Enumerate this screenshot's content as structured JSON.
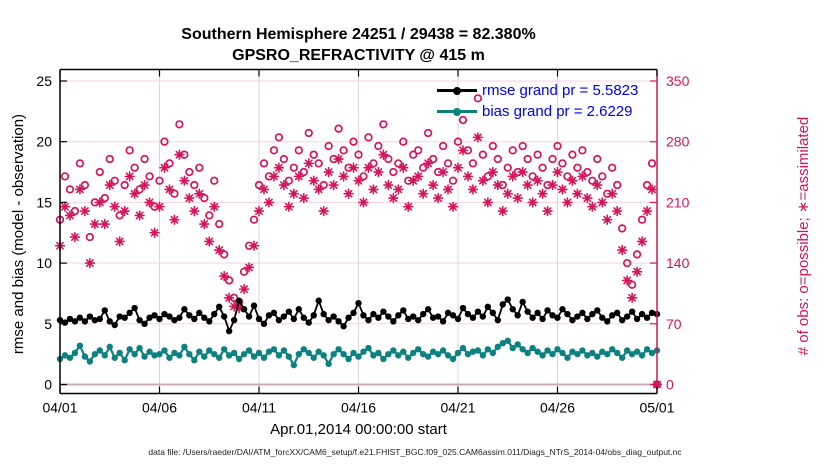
{
  "figure": {
    "title_line1": "Southern Hemisphere 24251 / 29438 = 82.380%",
    "title_line2": "GPSRO_REFRACTIVITY @ 415 m",
    "xlabel": "Apr.01,2014 00:00:00 start",
    "ylabel_left": "rmse and bias (model - observation)",
    "ylabel_right": "# of obs: o=possible; ∗=assimilated",
    "footer": "data file: /Users/raeder/DAI/ATM_forcXX/CAM6_setup/f.e21.FHIST_BGC.f09_025.CAM6assim.011/Diags_NTrS_2014-04/obs_diag_output.nc",
    "colors": {
      "crimson": "#d3165c",
      "grid_pink": "#f6d3e0",
      "zero_line": "#c9a9b7",
      "grid_gray": "#d8d8d8",
      "teal": "#0c8180",
      "legend_blue": "#0000ee",
      "black": "#000000"
    }
  },
  "legend": {
    "items": [
      {
        "label": "rmse grand pr = 5.5823",
        "series": "rmse"
      },
      {
        "label": "bias grand pr = 2.6229",
        "series": "bias"
      }
    ]
  },
  "chart_data": {
    "type": "line+scatter",
    "title": "Southern Hemisphere 24251 / 29438 = 82.380% | GPSRO_REFRACTIVITY @ 415 m",
    "x": {
      "unit": "days since Apr.01,2014 00:00:00",
      "start": 0,
      "step": 0.25,
      "end": 30
    },
    "x_ticks": {
      "days": [
        0,
        5,
        10,
        15,
        20,
        25,
        30
      ],
      "labels": [
        "04/01",
        "04/06",
        "04/11",
        "04/16",
        "04/21",
        "04/26",
        "05/01"
      ]
    },
    "left_axis": {
      "label": "rmse and bias (model - observation)",
      "ticks": [
        0,
        5,
        10,
        15,
        20,
        25
      ],
      "range": [
        -0.8,
        26.0
      ],
      "color": "#000000"
    },
    "right_axis": {
      "label": "# of obs: o=possible; ∗=assimilated",
      "ticks": [
        0,
        70,
        140,
        210,
        280,
        350
      ],
      "range": [
        -9,
        372
      ],
      "color": "#d3165c"
    },
    "grid": {
      "horizontal_pink_at_right_ticks": true,
      "vertical_gray_at_x_ticks": true
    },
    "legend_position": "top-right-inside",
    "series": [
      {
        "name": "rmse",
        "legend_label": "rmse grand pr = 5.5823",
        "axis": "left",
        "type": "line",
        "marker": "filled-circle",
        "color": "#000000",
        "values": [
          5.3,
          5.1,
          5.4,
          5.2,
          5.5,
          5.2,
          5.6,
          5.3,
          5.4,
          6.1,
          5.2,
          4.9,
          5.6,
          5.5,
          5.9,
          6.3,
          5.3,
          5.0,
          5.5,
          5.7,
          5.4,
          5.8,
          5.6,
          5.3,
          5.5,
          6.2,
          5.7,
          5.4,
          5.9,
          5.5,
          5.2,
          5.8,
          6.4,
          5.6,
          4.4,
          5.3,
          6.9,
          6.2,
          5.6,
          6.5,
          5.4,
          5.0,
          5.7,
          5.9,
          5.3,
          5.6,
          6.0,
          5.4,
          6.2,
          5.5,
          5.1,
          5.7,
          6.9,
          5.8,
          5.3,
          5.6,
          5.2,
          4.8,
          5.5,
          5.9,
          6.7,
          5.7,
          5.3,
          5.8,
          5.5,
          6.0,
          5.6,
          5.2,
          5.7,
          6.1,
          5.4,
          5.6,
          5.3,
          5.8,
          6.2,
          5.5,
          5.6,
          5.2,
          5.9,
          5.7,
          5.4,
          6.3,
          5.8,
          5.5,
          6.0,
          5.6,
          6.4,
          5.9,
          5.3,
          6.6,
          7.0,
          6.2,
          5.7,
          6.8,
          6.0,
          5.5,
          5.9,
          5.4,
          6.1,
          5.7,
          5.5,
          6.2,
          5.8,
          5.3,
          5.6,
          5.9,
          5.4,
          5.8,
          6.1,
          5.5,
          5.2,
          5.7,
          5.9,
          5.3,
          5.6,
          6.0,
          5.4,
          5.8,
          5.5,
          5.9,
          5.8
        ]
      },
      {
        "name": "bias",
        "legend_label": "bias grand pr = 2.6229",
        "axis": "left",
        "type": "line",
        "marker": "filled-circle",
        "color": "#0c8180",
        "values": [
          2.1,
          2.4,
          2.2,
          2.6,
          3.2,
          2.3,
          1.9,
          2.5,
          2.8,
          2.4,
          3.1,
          2.2,
          2.6,
          2.0,
          2.9,
          2.5,
          3.0,
          2.3,
          2.7,
          2.4,
          2.5,
          2.8,
          2.2,
          2.6,
          2.4,
          3.1,
          2.5,
          2.0,
          2.7,
          2.3,
          2.8,
          2.5,
          2.2,
          2.9,
          2.4,
          2.6,
          2.1,
          2.5,
          2.8,
          2.3,
          2.6,
          2.2,
          2.7,
          2.9,
          2.4,
          2.8,
          2.3,
          1.6,
          2.5,
          2.9,
          2.6,
          2.2,
          2.7,
          2.4,
          1.7,
          2.5,
          2.9,
          2.5,
          2.1,
          2.6,
          2.3,
          2.7,
          3.0,
          2.4,
          2.6,
          2.1,
          2.5,
          2.8,
          2.4,
          2.7,
          2.2,
          2.6,
          2.9,
          2.5,
          2.3,
          2.7,
          2.5,
          2.8,
          2.4,
          2.1,
          2.6,
          3.0,
          2.5,
          2.7,
          2.8,
          2.4,
          2.9,
          2.6,
          3.1,
          3.4,
          3.6,
          3.0,
          3.3,
          2.9,
          2.6,
          3.0,
          2.7,
          2.4,
          2.8,
          2.5,
          2.9,
          2.6,
          2.2,
          2.7,
          2.5,
          2.8,
          2.4,
          2.6,
          2.3,
          2.7,
          2.5,
          2.9,
          2.6,
          2.2,
          2.8,
          2.5,
          2.7,
          2.4,
          2.9,
          2.6,
          2.8
        ]
      },
      {
        "name": "possible",
        "legend_label": "o=possible",
        "axis": "right",
        "type": "scatter",
        "marker": "open-circle",
        "color": "#d3165c",
        "values": [
          190,
          240,
          225,
          200,
          255,
          230,
          170,
          210,
          245,
          215,
          260,
          235,
          195,
          230,
          270,
          250,
          225,
          260,
          240,
          205,
          235,
          280,
          255,
          220,
          300,
          265,
          245,
          230,
          250,
          215,
          195,
          235,
          185,
          150,
          120,
          100,
          95,
          130,
          160,
          190,
          230,
          255,
          240,
          270,
          285,
          260,
          235,
          250,
          270,
          245,
          290,
          265,
          255,
          230,
          275,
          260,
          295,
          270,
          250,
          280,
          265,
          240,
          285,
          255,
          275,
          300,
          260,
          245,
          255,
          280,
          235,
          265,
          270,
          250,
          290,
          260,
          245,
          275,
          255,
          235,
          280,
          305,
          270,
          255,
          330,
          265,
          240,
          275,
          260,
          230,
          250,
          270,
          245,
          275,
          260,
          240,
          265,
          250,
          230,
          260,
          275,
          255,
          240,
          265,
          250,
          270,
          245,
          235,
          260,
          240,
          220,
          250,
          230,
          180,
          140,
          115,
          150,
          190,
          230,
          255,
          0
        ]
      },
      {
        "name": "assimilated",
        "legend_label": "∗=assimilated",
        "axis": "right",
        "type": "scatter",
        "marker": "asterisk",
        "color": "#d3165c",
        "values": [
          160,
          205,
          195,
          170,
          225,
          200,
          140,
          185,
          210,
          185,
          230,
          205,
          165,
          200,
          240,
          220,
          195,
          230,
          210,
          175,
          205,
          250,
          225,
          190,
          265,
          235,
          215,
          200,
          220,
          185,
          165,
          205,
          155,
          125,
          100,
          90,
          88,
          110,
          135,
          160,
          200,
          225,
          210,
          240,
          250,
          230,
          205,
          220,
          240,
          215,
          255,
          235,
          225,
          200,
          245,
          230,
          260,
          240,
          220,
          250,
          235,
          210,
          250,
          225,
          245,
          265,
          230,
          215,
          225,
          250,
          205,
          235,
          240,
          220,
          255,
          230,
          215,
          245,
          225,
          205,
          250,
          270,
          240,
          225,
          285,
          235,
          210,
          245,
          230,
          200,
          220,
          240,
          215,
          245,
          230,
          210,
          235,
          220,
          200,
          230,
          245,
          225,
          210,
          235,
          220,
          240,
          215,
          205,
          230,
          210,
          190,
          220,
          200,
          155,
          120,
          100,
          130,
          165,
          200,
          225,
          0
        ]
      }
    ]
  }
}
